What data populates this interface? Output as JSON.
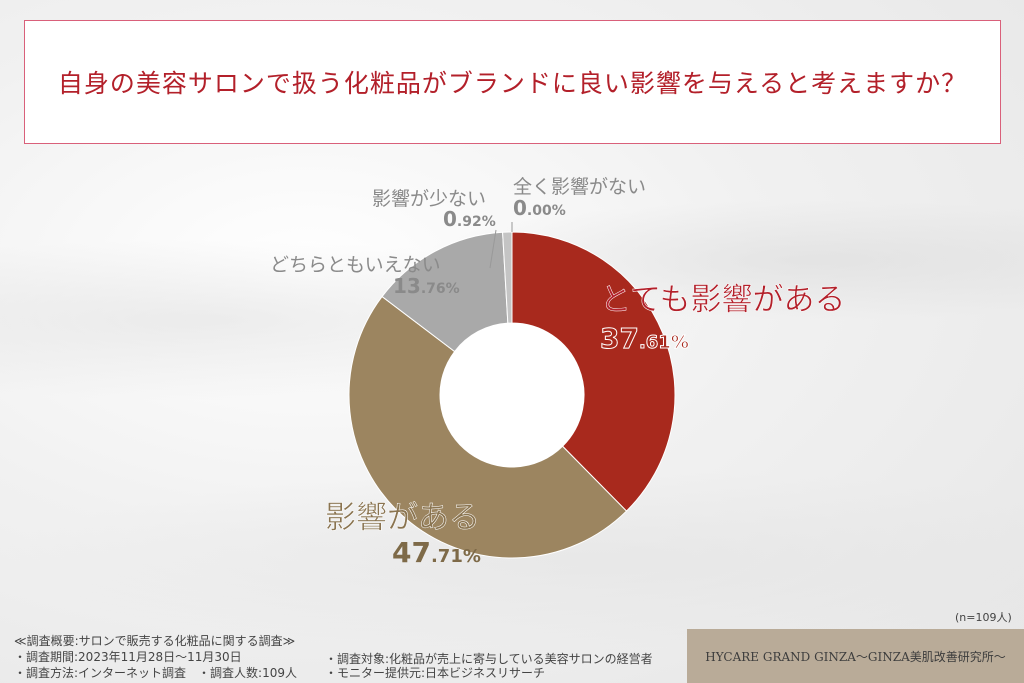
{
  "title": "自身の美容サロンで扱う化粧品がブランドに良い影響を与えると考えますか？",
  "chart_data": {
    "type": "pie",
    "donut": true,
    "title": "自身の美容サロンで扱う化粧品がブランドに良い影響を与えると考えますか？",
    "slices": [
      {
        "label": "とても影響がある",
        "value": 37.61,
        "int": "37",
        "dec": ".61%",
        "color": "#a8291d"
      },
      {
        "label": "影響がある",
        "value": 47.71,
        "int": "47",
        "dec": ".71%",
        "color": "#9c8560"
      },
      {
        "label": "どちらともいえない",
        "value": 13.76,
        "int": "13",
        "dec": ".76%",
        "color": "#a9a9a9"
      },
      {
        "label": "影響が少ない",
        "value": 0.92,
        "int": "0",
        "dec": ".92%",
        "color": "#c4c4c4"
      },
      {
        "label": "全く影響がない",
        "value": 0.0,
        "int": "0",
        "dec": ".00%",
        "color": "#d8d8d8"
      }
    ]
  },
  "n_label": "(n=109人)",
  "footer": {
    "summary": "≪調査概要:サロンで販売する化粧品に関する調査≫",
    "period": "・調査期間:2023年11月28日～11月30日",
    "method": "・調査方法:インターネット調査　・調査人数:109人",
    "target": "・調査対象:化粧品が売上に寄与している美容サロンの経営者",
    "provider": "・モニター提供元:日本ビジネスリサーチ"
  },
  "brand": "HYCARE GRAND GINZA～GINZA美肌改善研究所～"
}
